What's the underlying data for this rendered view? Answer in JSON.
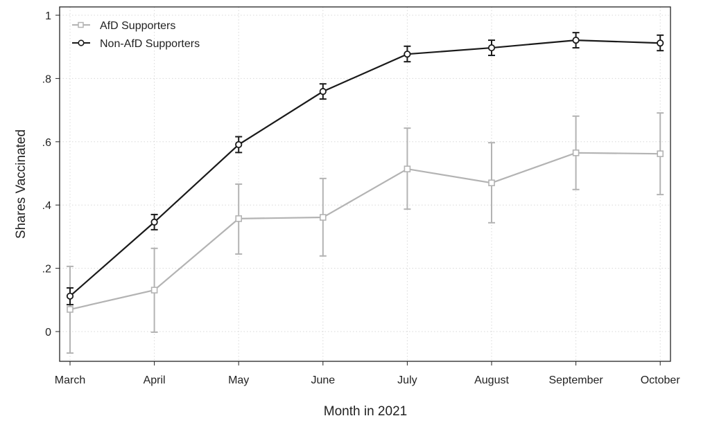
{
  "chart_data": {
    "type": "line",
    "title": "",
    "xlabel": "Month in 2021",
    "ylabel": "Shares Vaccinated",
    "ylim": [
      -0.1,
      1.02
    ],
    "yticks": [
      0,
      0.2,
      0.4,
      0.6,
      0.8,
      1
    ],
    "ytick_labels": [
      "0",
      ".2",
      ".4",
      ".6",
      ".8",
      "1"
    ],
    "categories": [
      "March",
      "April",
      "May",
      "June",
      "July",
      "August",
      "September",
      "October"
    ],
    "grid": true,
    "legend_position": "top-left",
    "series": [
      {
        "name": "AfD Supporters",
        "color": "#b3b3b3",
        "marker": "square",
        "values": [
          0.07,
          0.131,
          0.357,
          0.361,
          0.514,
          0.47,
          0.565,
          0.562
        ],
        "ci_low": [
          -0.068,
          -0.002,
          0.245,
          0.239,
          0.387,
          0.344,
          0.449,
          0.433
        ],
        "ci_high": [
          0.206,
          0.263,
          0.466,
          0.484,
          0.643,
          0.597,
          0.681,
          0.691
        ]
      },
      {
        "name": "Non-AfD Supporters",
        "color": "#1a1a1a",
        "marker": "circle",
        "values": [
          0.112,
          0.346,
          0.591,
          0.759,
          0.877,
          0.897,
          0.921,
          0.912
        ],
        "ci_low": [
          0.085,
          0.322,
          0.566,
          0.735,
          0.853,
          0.873,
          0.897,
          0.888
        ],
        "ci_high": [
          0.138,
          0.37,
          0.616,
          0.783,
          0.902,
          0.921,
          0.945,
          0.937
        ]
      }
    ]
  }
}
